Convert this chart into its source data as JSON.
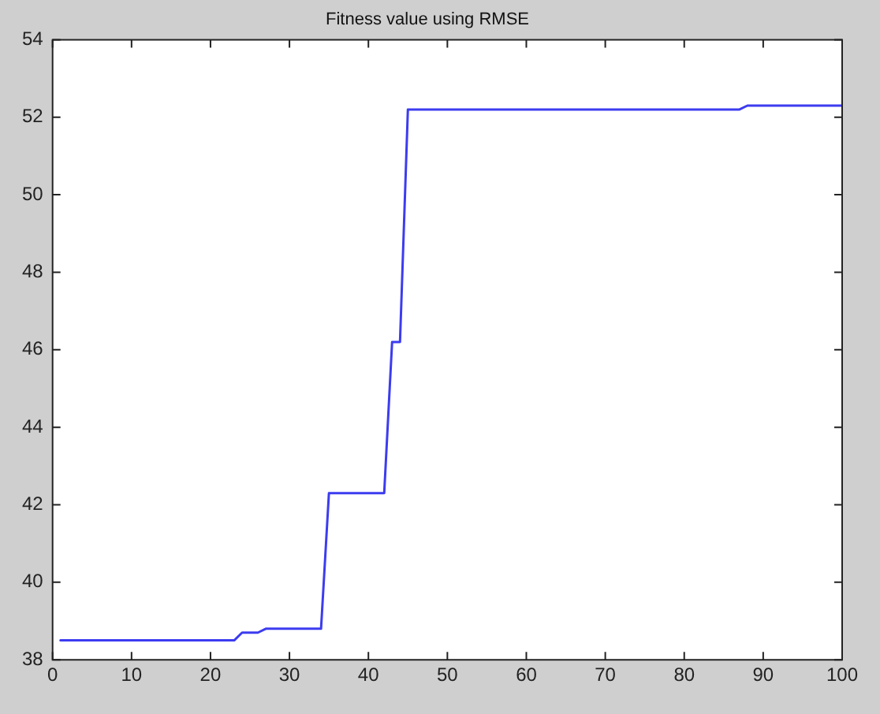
{
  "chart_data": {
    "type": "line",
    "title": "Fitness value using RMSE",
    "series": [
      {
        "color": "#3c3cf0",
        "x": [
          1,
          23,
          24,
          26,
          27,
          34,
          35,
          42,
          43,
          44,
          45,
          87,
          88,
          100
        ],
        "values": [
          38.5,
          38.5,
          38.7,
          38.7,
          38.8,
          38.8,
          42.3,
          42.3,
          46.2,
          46.2,
          52.2,
          52.2,
          52.3,
          52.3
        ]
      }
    ],
    "xlim": [
      0,
      100
    ],
    "xticks": [
      0,
      10,
      20,
      30,
      40,
      50,
      60,
      70,
      80,
      90,
      100
    ],
    "ylim": [
      38,
      54
    ],
    "yticks": [
      38,
      40,
      42,
      44,
      46,
      48,
      50,
      52,
      54
    ],
    "grid": false,
    "legend": false,
    "marker": "none",
    "line_style": "solid"
  }
}
